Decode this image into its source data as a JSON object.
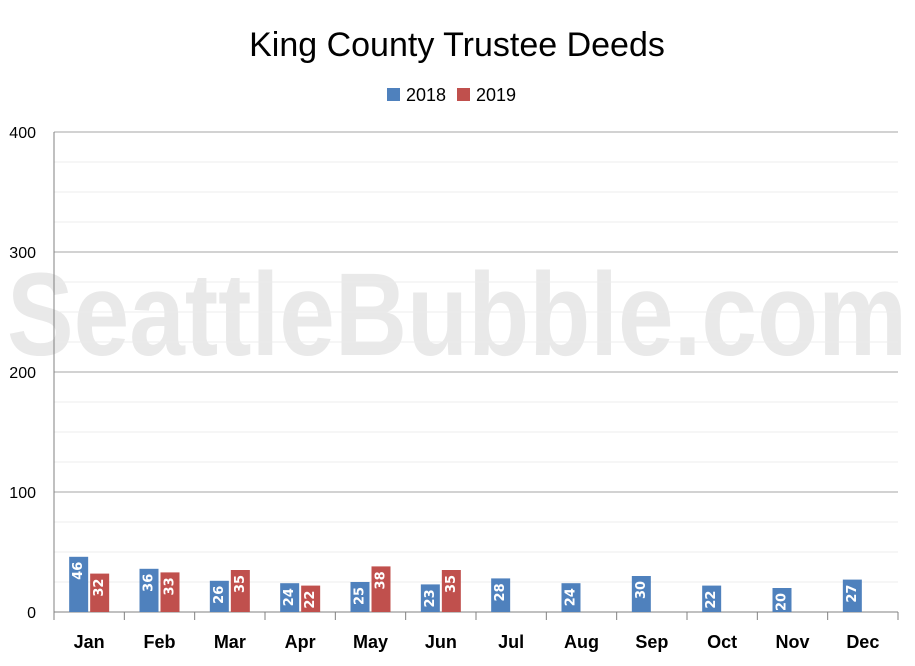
{
  "watermark": "SeattleBubble.com",
  "chart_data": {
    "type": "bar",
    "title": "King County Trustee Deeds",
    "categories": [
      "Jan",
      "Feb",
      "Mar",
      "Apr",
      "May",
      "Jun",
      "Jul",
      "Aug",
      "Sep",
      "Oct",
      "Nov",
      "Dec"
    ],
    "series": [
      {
        "name": "2018",
        "color": "#4f81bd",
        "values": [
          46,
          36,
          26,
          24,
          25,
          23,
          28,
          24,
          30,
          22,
          20,
          27
        ]
      },
      {
        "name": "2019",
        "color": "#c0504d",
        "values": [
          32,
          33,
          35,
          22,
          38,
          35,
          null,
          null,
          null,
          null,
          null,
          null
        ]
      }
    ],
    "ylim": [
      0,
      400
    ],
    "yticks": [
      0,
      100,
      200,
      300,
      400
    ],
    "legend": "top-center",
    "grid": true,
    "data_labels": true
  }
}
